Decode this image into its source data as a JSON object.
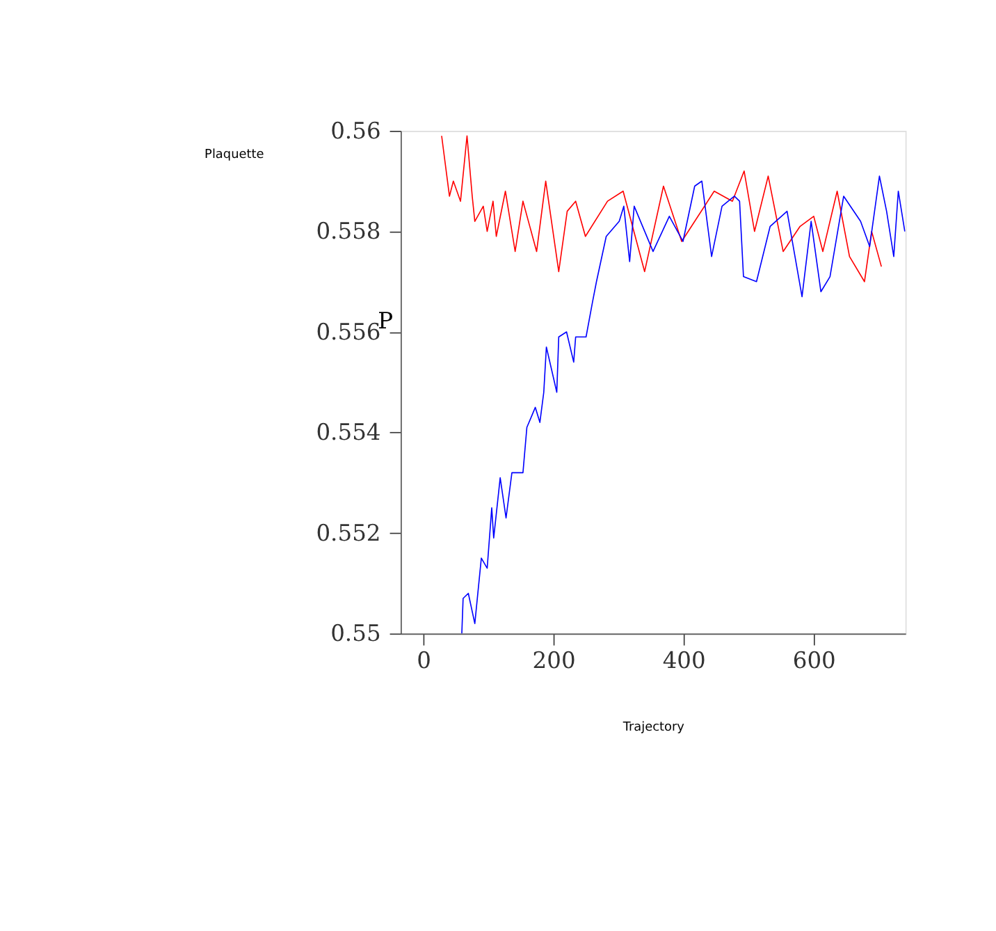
{
  "chart_data": {
    "type": "line",
    "title": "Plaquette",
    "xlabel": "Trajectory",
    "ylabel": "P",
    "xlim": [
      -35,
      741
    ],
    "xticks": [
      0,
      200,
      400,
      600
    ],
    "ylim": [
      0.55,
      0.56
    ],
    "yticks": [
      0.55,
      0.552,
      0.554,
      0.556,
      0.558,
      0.56
    ],
    "grid": false,
    "legend": false,
    "series": [
      {
        "color": "#ff0000",
        "x": [
          28,
          40,
          46,
          57,
          67,
          75,
          79,
          92,
          98,
          107,
          112,
          126,
          141,
          153,
          174,
          188,
          208,
          221,
          234,
          249,
          283,
          307,
          340,
          369,
          397,
          447,
          475,
          493,
          509,
          530,
          553,
          579,
          600,
          614,
          636,
          655,
          678,
          689,
          704
        ],
        "values": [
          0.5599,
          0.5587,
          0.559,
          0.5586,
          0.5599,
          0.5587,
          0.5582,
          0.5585,
          0.558,
          0.5586,
          0.5579,
          0.5588,
          0.5576,
          0.5586,
          0.5576,
          0.559,
          0.5572,
          0.5584,
          0.5586,
          0.5579,
          0.5586,
          0.5588,
          0.5572,
          0.5589,
          0.5578,
          0.5588,
          0.5586,
          0.5592,
          0.558,
          0.5591,
          0.5576,
          0.5581,
          0.5583,
          0.5576,
          0.5588,
          0.5575,
          0.557,
          0.558,
          0.5573
        ]
      },
      {
        "color": "#0000ff",
        "x": [
          59,
          61,
          69,
          79,
          89,
          98,
          105,
          108,
          118,
          127,
          136,
          153,
          159,
          172,
          179,
          185,
          189,
          205,
          208,
          220,
          231,
          234,
          250,
          260,
          266,
          281,
          301,
          308,
          317,
          324,
          353,
          378,
          399,
          417,
          428,
          443,
          459,
          478,
          486,
          492,
          512,
          533,
          559,
          582,
          596,
          611,
          625,
          646,
          672,
          686,
          701,
          712,
          723,
          730,
          740
        ],
        "values": [
          0.55,
          0.5507,
          0.5508,
          0.5502,
          0.5515,
          0.5513,
          0.5525,
          0.5519,
          0.5531,
          0.5523,
          0.5532,
          0.5532,
          0.5541,
          0.5545,
          0.5542,
          0.5548,
          0.5557,
          0.5548,
          0.5559,
          0.556,
          0.5554,
          0.5559,
          0.5559,
          0.5566,
          0.557,
          0.5579,
          0.5582,
          0.5585,
          0.5574,
          0.5585,
          0.5576,
          0.5583,
          0.5578,
          0.5589,
          0.559,
          0.5575,
          0.5585,
          0.5587,
          0.5586,
          0.5571,
          0.557,
          0.5581,
          0.5584,
          0.5567,
          0.5582,
          0.5568,
          0.5571,
          0.5587,
          0.5582,
          0.5577,
          0.5591,
          0.5584,
          0.5575,
          0.5588,
          0.558
        ]
      }
    ]
  }
}
